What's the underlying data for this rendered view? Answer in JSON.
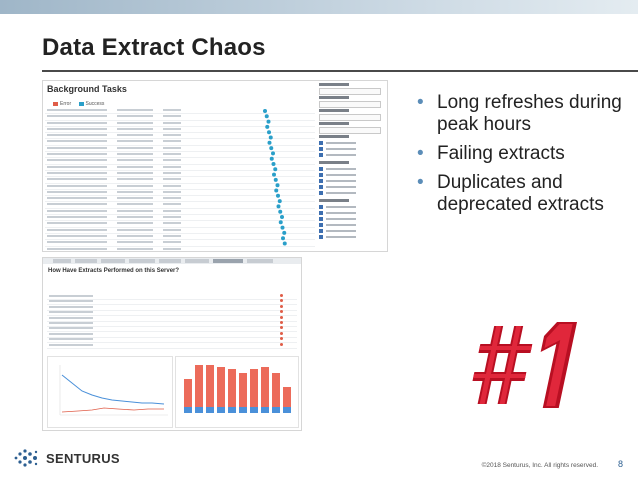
{
  "slide": {
    "title": "Data Extract Chaos",
    "bullets": [
      "Long refreshes during peak hours",
      "Failing extracts",
      "Duplicates and deprecated extracts"
    ],
    "footer": {
      "logo_text": "SENTURUS",
      "copyright": "©2018 Senturus, Inc. All rights reserved.",
      "page_number": "8"
    },
    "graphic_label": "#1"
  },
  "screenshot_background_tasks": {
    "title": "Background Tasks",
    "legend": [
      "Error",
      "Success"
    ],
    "colors": {
      "error": "#e05d48",
      "success": "#2a9fc9"
    }
  },
  "screenshot_extracts_dashboard": {
    "title": "How Have Extracts Performed on this Server?",
    "colors": {
      "bar": "#ec6b5a",
      "bar_base": "#4a90d9",
      "line": "#4a90d9"
    }
  }
}
